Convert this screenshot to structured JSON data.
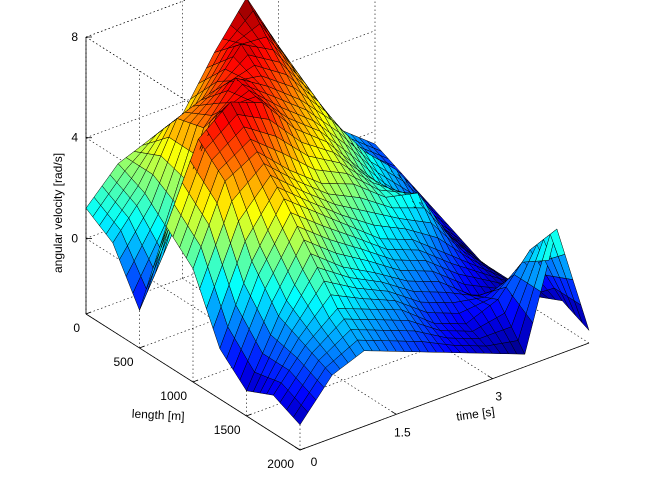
{
  "chart_data": {
    "type": "surface",
    "title": "",
    "xlabel": "time [s]",
    "ylabel": "length [m]",
    "zlabel": "angular velocity [rad/s]",
    "xlim": [
      0,
      4.5
    ],
    "ylim": [
      0,
      2000
    ],
    "zlim": [
      -3,
      8
    ],
    "x_ticks": [
      "0",
      "1.5",
      "3"
    ],
    "x_tick_values": [
      0,
      1.5,
      3
    ],
    "y_ticks": [
      "0",
      "500",
      "1000",
      "1500",
      "2000"
    ],
    "y_tick_values": [
      0,
      500,
      1000,
      1500,
      2000
    ],
    "z_ticks": [
      "0",
      "4",
      "8"
    ],
    "z_tick_values": [
      0,
      4,
      8
    ],
    "colormap": "jet",
    "grid": true,
    "time_s": [
      0,
      0.5,
      1.0,
      1.5,
      2.0,
      2.5,
      3.0,
      3.5,
      4.0,
      4.5
    ],
    "length_m": [
      0,
      250,
      500,
      750,
      1000,
      1250,
      1500,
      1750,
      2000
    ],
    "angular_velocity": [
      [
        1.2,
        2.5,
        3.0,
        3.5,
        5.5,
        7.2,
        4.8,
        2.0,
        0.5,
        -0.5
      ],
      [
        0.5,
        2.0,
        4.5,
        5.0,
        6.5,
        5.8,
        4.0,
        1.5,
        0.0,
        -1.0
      ],
      [
        -1.5,
        1.0,
        4.8,
        6.3,
        5.5,
        4.5,
        3.2,
        1.5,
        0.3,
        -1.5
      ],
      [
        2.5,
        5.5,
        6.5,
        6.0,
        4.5,
        3.5,
        2.0,
        0.5,
        -0.8,
        -2.0
      ],
      [
        1.5,
        4.5,
        5.2,
        4.0,
        3.0,
        2.5,
        1.5,
        1.2,
        -1.0,
        -2.5
      ],
      [
        -1.0,
        2.0,
        4.0,
        3.0,
        2.0,
        1.0,
        0.5,
        -0.5,
        -1.5,
        -2.5
      ],
      [
        -2.0,
        0.5,
        2.5,
        1.5,
        0.8,
        0.0,
        -0.5,
        -1.5,
        -2.0,
        -2.5
      ],
      [
        -1.5,
        0.0,
        1.0,
        0.5,
        0.0,
        -1.0,
        -1.5,
        -1.0,
        0.5,
        -2.0
      ],
      [
        -2.0,
        -0.5,
        0.0,
        -0.5,
        -1.0,
        -1.5,
        -2.0,
        -2.5,
        2.0,
        -2.5
      ]
    ]
  }
}
